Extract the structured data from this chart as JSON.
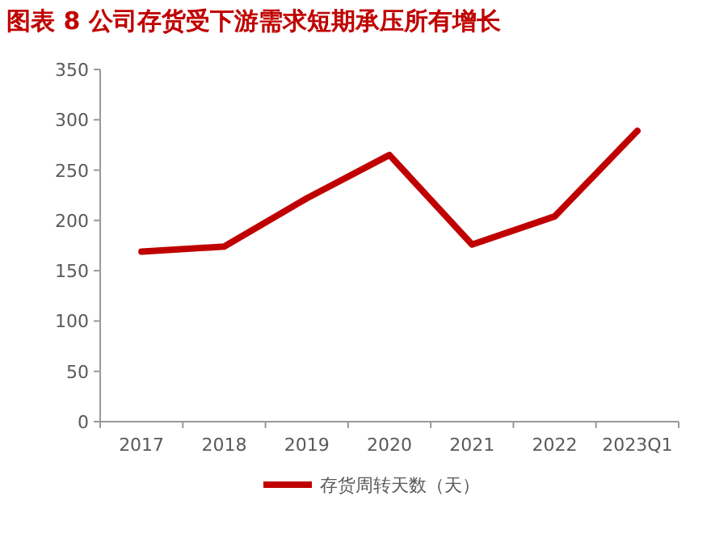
{
  "chart_data": {
    "type": "line",
    "title": "图表 8 公司存货受下游需求短期承压所有增长",
    "categories": [
      "2017",
      "2018",
      "2019",
      "2020",
      "2021",
      "2022",
      "2023Q1"
    ],
    "series": [
      {
        "name": "存货周转天数（天）",
        "color": "#c00000",
        "values": [
          169,
          174,
          222,
          265,
          176,
          204,
          289
        ]
      }
    ],
    "ylim": [
      0,
      350
    ],
    "yticks": [
      0,
      50,
      100,
      150,
      200,
      250,
      300,
      350
    ],
    "grid": false,
    "legend": "bottom",
    "marker": "none",
    "line_style": "solid"
  }
}
